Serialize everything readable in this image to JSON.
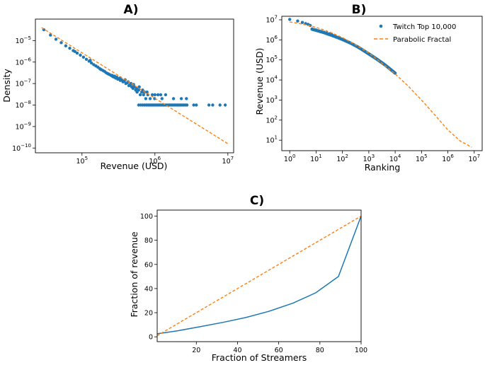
{
  "colors": {
    "blue": "#1f77b4",
    "orange": "#ff7f0e"
  },
  "chart_data": [
    {
      "type": "scatter",
      "panel_label": "A)",
      "xlabel": "Revenue (USD)",
      "ylabel": "Density",
      "x_scale": "log",
      "y_scale": "log",
      "xlim": [
        23000,
        12000000
      ],
      "ylim": [
        6e-11,
        0.0001
      ],
      "x_ticks": [
        {
          "v": 100000,
          "b": "10",
          "e": "5"
        },
        {
          "v": 1000000,
          "b": "10",
          "e": "6"
        },
        {
          "v": 10000000,
          "b": "10",
          "e": "7"
        }
      ],
      "y_ticks": [
        {
          "v": 1e-10,
          "b": "10",
          "e": "−10"
        },
        {
          "v": 1e-09,
          "b": "10",
          "e": "−9"
        },
        {
          "v": 1e-08,
          "b": "10",
          "e": "−8"
        },
        {
          "v": 1e-07,
          "b": "10",
          "e": "−7"
        },
        {
          "v": 1e-06,
          "b": "10",
          "e": "−6"
        },
        {
          "v": 1e-05,
          "b": "10",
          "e": "−5"
        }
      ],
      "grid": false,
      "series": [
        {
          "kind": "points",
          "color": "blue",
          "points": [
            [
              30000,
              3.2e-05
            ],
            [
              37000,
              1.8e-05
            ],
            [
              44000,
              1.15e-05
            ],
            [
              52000,
              8e-06
            ],
            [
              60000,
              5.7e-06
            ],
            [
              68000,
              4.4e-06
            ],
            [
              76000,
              3.4e-06
            ],
            [
              86000,
              2.6e-06
            ],
            [
              95000,
              2.1e-06
            ],
            [
              105000,
              1.7e-06
            ],
            [
              115000,
              1.35e-06
            ],
            [
              125000,
              1.1e-06
            ],
            [
              135000,
              9e-07
            ],
            [
              145000,
              7.6e-07
            ],
            [
              155000,
              6.6e-07
            ],
            [
              165000,
              5.8e-07
            ],
            [
              175000,
              5e-07
            ],
            [
              185000,
              4.4e-07
            ],
            [
              195000,
              4e-07
            ],
            [
              205000,
              3.6e-07
            ],
            [
              215000,
              3.2e-07
            ],
            [
              225000,
              2.9e-07
            ],
            [
              235000,
              2.7e-07
            ],
            [
              245000,
              2.5e-07
            ],
            [
              255000,
              2.3e-07
            ],
            [
              265000,
              2.1e-07
            ],
            [
              275000,
              2e-07
            ],
            [
              290000,
              1.8e-07
            ],
            [
              300000,
              2e-07
            ],
            [
              310000,
              1.6e-07
            ],
            [
              320000,
              1.7e-07
            ],
            [
              335000,
              1.4e-07
            ],
            [
              350000,
              1.5e-07
            ],
            [
              365000,
              1.2e-07
            ],
            [
              380000,
              1.3e-07
            ],
            [
              400000,
              1e-07
            ],
            [
              420000,
              1.1e-07
            ],
            [
              440000,
              8e-08
            ],
            [
              460000,
              9e-08
            ],
            [
              480000,
              7e-08
            ],
            [
              500000,
              6e-08
            ],
            [
              520000,
              7e-08
            ],
            [
              545000,
              5e-08
            ],
            [
              570000,
              4e-08
            ],
            [
              600000,
              5e-08
            ],
            [
              630000,
              3e-08
            ],
            [
              660000,
              4e-08
            ],
            [
              700000,
              3e-08
            ],
            [
              750000,
              2e-08
            ],
            [
              800000,
              3e-08
            ],
            [
              860000,
              2e-08
            ],
            [
              920000,
              3e-08
            ],
            [
              990000,
              2e-08
            ],
            [
              1100000,
              3e-08
            ],
            [
              1250000,
              2e-08
            ],
            [
              1400000,
              3e-08
            ],
            [
              1800000,
              2e-08
            ],
            [
              2300000,
              2e-08
            ],
            [
              2700000,
              2e-08
            ],
            [
              80000,
              3.1e-06
            ],
            [
              130000,
              1.2e-06
            ],
            [
              180000,
              4.6e-07
            ],
            [
              230000,
              2.8e-07
            ],
            [
              260000,
              2.4e-07
            ],
            [
              280000,
              2.2e-07
            ],
            [
              330000,
              1.8e-07
            ],
            [
              390000,
              1.5e-07
            ],
            [
              430000,
              1.2e-07
            ],
            [
              470000,
              1e-07
            ],
            [
              510000,
              9e-08
            ],
            [
              560000,
              6e-08
            ],
            [
              610000,
              7e-08
            ],
            [
              680000,
              5e-08
            ],
            [
              720000,
              4e-08
            ],
            [
              780000,
              4e-08
            ],
            [
              1000000,
              3e-08
            ],
            [
              1200000,
              3e-08
            ],
            [
              600000,
              1e-08
            ],
            [
              640000,
              1e-08
            ],
            [
              680000,
              1e-08
            ],
            [
              720000,
              1e-08
            ],
            [
              760000,
              1e-08
            ],
            [
              800000,
              1e-08
            ],
            [
              840000,
              1e-08
            ],
            [
              880000,
              1e-08
            ],
            [
              920000,
              1e-08
            ],
            [
              960000,
              1e-08
            ],
            [
              1000000,
              1e-08
            ],
            [
              1050000,
              1e-08
            ],
            [
              1100000,
              1e-08
            ],
            [
              1150000,
              1e-08
            ],
            [
              1200000,
              1e-08
            ],
            [
              1260000,
              1e-08
            ],
            [
              1320000,
              1e-08
            ],
            [
              1380000,
              1e-08
            ],
            [
              1450000,
              1e-08
            ],
            [
              1520000,
              1e-08
            ],
            [
              1600000,
              1e-08
            ],
            [
              1680000,
              1e-08
            ],
            [
              1760000,
              1e-08
            ],
            [
              1850000,
              1e-08
            ],
            [
              1940000,
              1e-08
            ],
            [
              2040000,
              1e-08
            ],
            [
              2140000,
              1e-08
            ],
            [
              2250000,
              1e-08
            ],
            [
              2360000,
              1e-08
            ],
            [
              2480000,
              1e-08
            ],
            [
              2600000,
              1e-08
            ],
            [
              2750000,
              1e-08
            ],
            [
              3400000,
              1e-08
            ],
            [
              3700000,
              1e-08
            ],
            [
              5500000,
              1e-08
            ],
            [
              6200000,
              1e-08
            ],
            [
              7800000,
              1e-08
            ],
            [
              9200000,
              1e-08
            ]
          ]
        },
        {
          "kind": "dashed-line",
          "color": "orange",
          "points": [
            [
              28000,
              4e-05
            ],
            [
              10000000,
              1.6e-10
            ]
          ]
        }
      ]
    },
    {
      "type": "scatter",
      "panel_label": "B)",
      "xlabel": "Ranking",
      "ylabel": "Revenue (USD)",
      "x_scale": "log",
      "y_scale": "log",
      "xlim": [
        0.5,
        20000000
      ],
      "ylim": [
        3,
        15000000
      ],
      "x_ticks": [
        {
          "v": 1,
          "b": "10",
          "e": "0"
        },
        {
          "v": 10,
          "b": "10",
          "e": "1"
        },
        {
          "v": 100,
          "b": "10",
          "e": "2"
        },
        {
          "v": 1000,
          "b": "10",
          "e": "3"
        },
        {
          "v": 10000,
          "b": "10",
          "e": "4"
        },
        {
          "v": 100000,
          "b": "10",
          "e": "5"
        },
        {
          "v": 1000000,
          "b": "10",
          "e": "6"
        },
        {
          "v": 10000000,
          "b": "10",
          "e": "7"
        }
      ],
      "y_ticks": [
        {
          "v": 10,
          "b": "10",
          "e": "1"
        },
        {
          "v": 100,
          "b": "10",
          "e": "2"
        },
        {
          "v": 1000,
          "b": "10",
          "e": "3"
        },
        {
          "v": 10000,
          "b": "10",
          "e": "4"
        },
        {
          "v": 100000,
          "b": "10",
          "e": "5"
        },
        {
          "v": 1000000,
          "b": "10",
          "e": "6"
        },
        {
          "v": 10000000,
          "b": "10",
          "e": "7"
        }
      ],
      "grid": false,
      "legend": {
        "placement": "top-right",
        "entries": [
          {
            "label": "Twitch Top 10,000",
            "kind": "marker",
            "color": "blue"
          },
          {
            "label": "Parabolic Fractal",
            "kind": "dashed",
            "color": "orange"
          }
        ]
      },
      "series": [
        {
          "kind": "points",
          "color": "blue",
          "points": [
            [
              1,
              10500000
            ],
            [
              2,
              8700000
            ],
            [
              3,
              7400000
            ],
            [
              4,
              6500000
            ],
            [
              5,
              5900000
            ],
            [
              6,
              5200000
            ],
            [
              7,
              3500000
            ],
            [
              8,
              3300000
            ],
            [
              10,
              3100000
            ],
            [
              13,
              2800000
            ],
            [
              16,
              2600000
            ],
            [
              20,
              2400000
            ],
            [
              25,
              2200000
            ],
            [
              32,
              2000000
            ],
            [
              40,
              1800000
            ]
          ]
        },
        {
          "kind": "thick-line",
          "color": "blue",
          "points": [
            [
              7,
              3400000
            ],
            [
              10,
              3000000
            ],
            [
              20,
              2300000
            ],
            [
              50,
              1500000
            ],
            [
              100,
              1050000
            ],
            [
              200,
              700000
            ],
            [
              400,
              430000
            ],
            [
              1000,
              200000
            ],
            [
              2000,
              110000
            ],
            [
              4000,
              58000
            ],
            [
              10000,
              22000
            ]
          ]
        },
        {
          "kind": "dashed-line",
          "color": "orange",
          "points": [
            [
              1,
              7800000
            ],
            [
              2,
              6800000
            ],
            [
              5,
              5300000
            ],
            [
              10,
              4200000
            ],
            [
              30,
              2600000
            ],
            [
              100,
              1300000
            ],
            [
              300,
              590000
            ],
            [
              1000,
              220000
            ],
            [
              3000,
              72000
            ],
            [
              10000,
              20000
            ],
            [
              30000,
              5200
            ],
            [
              100000,
              1000
            ],
            [
              300000,
              200
            ],
            [
              1000000,
              32
            ],
            [
              3000000,
              9
            ],
            [
              8000000,
              4.5
            ]
          ]
        }
      ]
    },
    {
      "type": "line",
      "panel_label": "C)",
      "xlabel": "Fraction of Streamers",
      "ylabel": "Fraction of revenue",
      "x_scale": "linear",
      "y_scale": "linear",
      "xlim": [
        1,
        100
      ],
      "ylim": [
        -4,
        105
      ],
      "x_ticks": [
        {
          "v": 20,
          "t": "20"
        },
        {
          "v": 40,
          "t": "40"
        },
        {
          "v": 60,
          "t": "60"
        },
        {
          "v": 80,
          "t": "80"
        },
        {
          "v": 100,
          "t": "100"
        }
      ],
      "y_ticks": [
        {
          "v": 0,
          "t": "0"
        },
        {
          "v": 20,
          "t": "20"
        },
        {
          "v": 40,
          "t": "40"
        },
        {
          "v": 60,
          "t": "60"
        },
        {
          "v": 80,
          "t": "80"
        },
        {
          "v": 100,
          "t": "100"
        }
      ],
      "grid": false,
      "series": [
        {
          "kind": "solid-line",
          "color": "blue",
          "points": [
            [
              1,
              2.5
            ],
            [
              11,
              5
            ],
            [
              22,
              8.5
            ],
            [
              33,
              12
            ],
            [
              44,
              16
            ],
            [
              55,
              21
            ],
            [
              67,
              28
            ],
            [
              78,
              36.5
            ],
            [
              89,
              50
            ],
            [
              100,
              100
            ]
          ]
        },
        {
          "kind": "dashed-line",
          "color": "orange",
          "points": [
            [
              1,
              1
            ],
            [
              100,
              100
            ]
          ]
        }
      ]
    }
  ]
}
